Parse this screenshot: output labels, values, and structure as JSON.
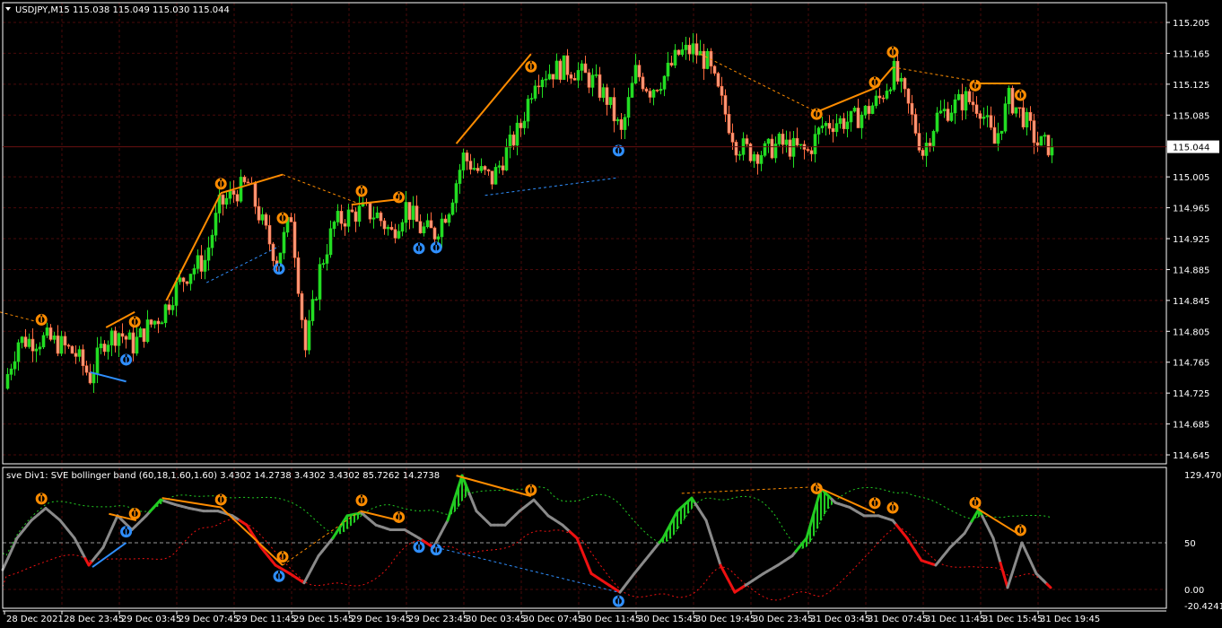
{
  "header": {
    "symbol_line": "USDJPY,M15  115.038 115.049 115.030 115.044",
    "indicator_line": "sve Div1: SVE bollinger band (60,18,1.60,1.60) 3.4302 14.2738 3.4302 3.4302 85.7262 14.2738"
  },
  "colors": {
    "background": "#000000",
    "bull": "#22dd22",
    "bear": "#ff6a3d",
    "grid": "#4a0a0a",
    "divergence_bear": "#ff8c00",
    "divergence_bull": "#2f8fff",
    "oscillator": "#8a8a8a",
    "upper_band": "#22cc22",
    "lower_band": "#ee1111"
  },
  "chart_data": [
    {
      "type": "candlestick",
      "symbol": "USDJPY",
      "timeframe": "M15",
      "last_price": "115.044",
      "ohlc_last": {
        "open": 115.038,
        "high": 115.049,
        "low": 115.03,
        "close": 115.044
      },
      "ylim": [
        114.645,
        115.205
      ],
      "y_ticks": [
        "115.205",
        "115.165",
        "115.125",
        "115.085",
        "115.005",
        "114.965",
        "114.925",
        "114.885",
        "114.845",
        "114.805",
        "114.765",
        "114.725",
        "114.685",
        "114.645"
      ],
      "x_ticks": [
        "28 Dec 2021",
        "28 Dec 23:45",
        "29 Dec 03:45",
        "29 Dec 07:45",
        "29 Dec 11:45",
        "29 Dec 15:45",
        "29 Dec 19:45",
        "29 Dec 23:45",
        "30 Dec 03:45",
        "30 Dec 07:45",
        "30 Dec 11:45",
        "30 Dec 15:45",
        "30 Dec 19:45",
        "30 Dec 23:45",
        "31 Dec 03:45",
        "31 Dec 07:45",
        "31 Dec 11:45",
        "31 Dec 15:45",
        "31 Dec 19:45"
      ],
      "hourly_closes": [
        114.735,
        114.793,
        114.793,
        114.795,
        114.787,
        114.775,
        114.746,
        114.793,
        114.804,
        114.787,
        114.81,
        114.827,
        114.862,
        114.885,
        114.897,
        114.967,
        114.984,
        114.996,
        114.944,
        114.897,
        114.955,
        114.781,
        114.885,
        114.944,
        114.955,
        114.961,
        114.955,
        114.932,
        114.967,
        114.938,
        114.932,
        114.967,
        115.031,
        115.013,
        115.002,
        115.037,
        115.071,
        115.135,
        115.141,
        115.147,
        115.141,
        115.129,
        115.106,
        115.06,
        115.141,
        115.118,
        115.135,
        115.164,
        115.17,
        115.153,
        115.1,
        115.048,
        115.037,
        115.037,
        115.048,
        115.042,
        115.037,
        115.071,
        115.077,
        115.077,
        115.089,
        115.106,
        115.141,
        115.095,
        115.037,
        115.083,
        115.095,
        115.106,
        115.095,
        115.048,
        115.106,
        115.083,
        115.048,
        115.044
      ],
      "top_signals": [
        2.7,
        9.2,
        15.2,
        19.5,
        25,
        27.6,
        36.8,
        56.7,
        60.75,
        62,
        67.75,
        70.9
      ],
      "bottom_signals": [
        8.6,
        19.25,
        29,
        30.2,
        42.9
      ],
      "divergence_lines": [
        {
          "kind": "bear",
          "style": "solid",
          "from": [
            7.2,
            114.81
          ],
          "to": [
            9.2,
            114.83
          ]
        },
        {
          "kind": "bear",
          "style": "solid",
          "from": [
            11.4,
            114.845
          ],
          "to": [
            15.2,
            114.984
          ]
        },
        {
          "kind": "bear",
          "style": "solid",
          "from": [
            15.2,
            114.984
          ],
          "to": [
            19.5,
            115.008
          ]
        },
        {
          "kind": "bear",
          "style": "solid",
          "from": [
            24.3,
            114.969
          ],
          "to": [
            27.6,
            114.976
          ]
        },
        {
          "kind": "bear",
          "style": "solid",
          "from": [
            31.6,
            115.048
          ],
          "to": [
            36.8,
            115.164
          ]
        },
        {
          "kind": "bear",
          "style": "solid",
          "from": [
            56.7,
            115.089
          ],
          "to": [
            60.75,
            115.12
          ]
        },
        {
          "kind": "bear",
          "style": "solid",
          "from": [
            60.75,
            115.12
          ],
          "to": [
            62,
            115.147
          ]
        },
        {
          "kind": "bear",
          "style": "solid",
          "from": [
            67.75,
            115.126
          ],
          "to": [
            70.9,
            115.126
          ]
        },
        {
          "kind": "bear",
          "style": "dashed",
          "from": [
            -0.2,
            114.83
          ],
          "to": [
            2.7,
            114.816
          ]
        },
        {
          "kind": "bear",
          "style": "dashed",
          "from": [
            19.5,
            115.008
          ],
          "to": [
            25,
            114.969
          ]
        },
        {
          "kind": "bear",
          "style": "dashed",
          "from": [
            48.6,
            115.164
          ],
          "to": [
            56.7,
            115.089
          ]
        },
        {
          "kind": "bear",
          "style": "dashed",
          "from": [
            62,
            115.147
          ],
          "to": [
            67.75,
            115.129
          ]
        },
        {
          "kind": "bull",
          "style": "solid",
          "from": [
            6.1,
            114.752
          ],
          "to": [
            8.6,
            114.74
          ]
        },
        {
          "kind": "bull",
          "style": "dashed",
          "from": [
            14.2,
            114.868
          ],
          "to": [
            19.25,
            114.915
          ]
        },
        {
          "kind": "bull",
          "style": "dashed",
          "from": [
            33.6,
            114.981
          ],
          "to": [
            42.9,
            115.004
          ]
        }
      ]
    },
    {
      "type": "line",
      "name": "SVE bollinger band",
      "ylim": [
        -20.4241,
        129.4703
      ],
      "y_ticks": [
        "129.4703",
        "50",
        "0.00",
        "-20.4241"
      ],
      "level": 50,
      "hourly_values": [
        21,
        55,
        74,
        87,
        74,
        55,
        26,
        45,
        79,
        64,
        79,
        96,
        91,
        87,
        84,
        84,
        79,
        69,
        45,
        26,
        17,
        7,
        36,
        55,
        79,
        82,
        69,
        64,
        64,
        55,
        45,
        74,
        122,
        84,
        69,
        69,
        84,
        96,
        79,
        69,
        55,
        17,
        7,
        -3,
        17,
        36,
        55,
        84,
        98,
        74,
        26,
        -3,
        7,
        17,
        26,
        36,
        55,
        108,
        93,
        88,
        79,
        79,
        74,
        55,
        31,
        26,
        45,
        60,
        86,
        55,
        2,
        50,
        17,
        2
      ],
      "divergence_lines": [
        {
          "kind": "bear",
          "style": "solid",
          "from": [
            7.4,
            81
          ],
          "to": [
            9.3,
            74
          ]
        },
        {
          "kind": "bear",
          "style": "solid",
          "from": [
            11.1,
            98
          ],
          "to": [
            15.2,
            88
          ]
        },
        {
          "kind": "bear",
          "style": "solid",
          "from": [
            15.2,
            88
          ],
          "to": [
            19.5,
            26
          ]
        },
        {
          "kind": "bear",
          "style": "solid",
          "from": [
            24.9,
            84
          ],
          "to": [
            27.6,
            74
          ]
        },
        {
          "kind": "bear",
          "style": "solid",
          "from": [
            31.6,
            122
          ],
          "to": [
            36.8,
            100
          ]
        },
        {
          "kind": "bear",
          "style": "solid",
          "from": [
            56.7,
            110
          ],
          "to": [
            60.75,
            82
          ]
        },
        {
          "kind": "bear",
          "style": "solid",
          "from": [
            67.75,
            88
          ],
          "to": [
            70.9,
            58
          ]
        },
        {
          "kind": "bear",
          "style": "dashed",
          "from": [
            47.3,
            103
          ],
          "to": [
            56.7,
            110
          ]
        },
        {
          "kind": "bear",
          "style": "dashed",
          "from": [
            19.5,
            26
          ],
          "to": [
            24.9,
            84
          ]
        },
        {
          "kind": "bull",
          "style": "solid",
          "from": [
            6.25,
            24
          ],
          "to": [
            8.6,
            50
          ]
        },
        {
          "kind": "bull",
          "style": "dashed",
          "from": [
            30.2,
            45
          ],
          "to": [
            42.9,
            -3
          ]
        }
      ]
    }
  ]
}
